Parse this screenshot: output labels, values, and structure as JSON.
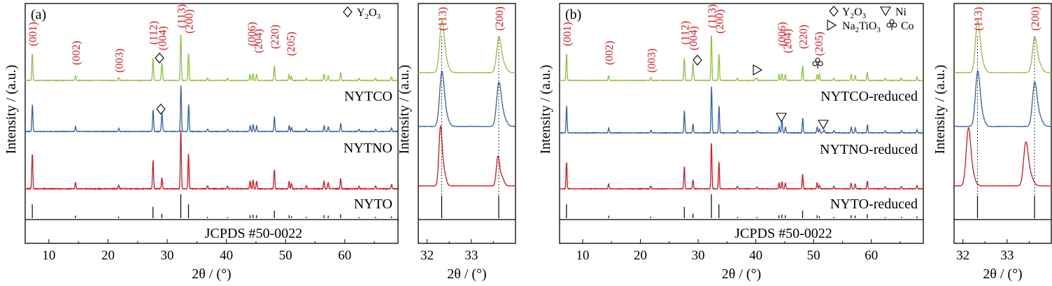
{
  "colors": {
    "NYTCO": "#8dc43f",
    "NYTNO": "#2d62ad",
    "NYTO": "#e0161f",
    "ref": "#000000",
    "hkl": "#e0161f"
  },
  "chart_data": [
    {
      "panel": "a",
      "type": "line",
      "panel_label": "(a)",
      "xlabel": "2θ / (°)",
      "ylabel": "Intensity / (a.u.)",
      "xlim": [
        6,
        69
      ],
      "xticks": [
        10,
        20,
        30,
        40,
        50,
        60
      ],
      "series": [
        {
          "name": "NYTCO"
        },
        {
          "name": "NYTNO"
        },
        {
          "name": "NYTO"
        }
      ],
      "reference_label": "JCPDS #50-0022",
      "peak_labels": [
        {
          "hkl": "(001)",
          "x": 7.2
        },
        {
          "hkl": "(002)",
          "x": 14.5
        },
        {
          "hkl": "(003)",
          "x": 21.8
        },
        {
          "hkl": "(112)",
          "x": 27.6
        },
        {
          "hkl": "(004)",
          "x": 29.1
        },
        {
          "hkl": "(113)",
          "x": 32.3
        },
        {
          "hkl": "(200)",
          "x": 33.6
        },
        {
          "hkl": "(006)",
          "x": 44.2
        },
        {
          "hkl": "(204)",
          "x": 45.3
        },
        {
          "hkl": "(220)",
          "x": 48.1
        },
        {
          "hkl": "(205)",
          "x": 50.8
        }
      ],
      "legend": [
        {
          "symbol": "diamond",
          "label": "Y",
          "sub": "2",
          "mid": "O",
          "sub2": "3"
        }
      ],
      "markers": [
        {
          "symbol": "diamond",
          "x": 29.1,
          "series": "NYTCO"
        },
        {
          "symbol": "diamond",
          "x": 29.1,
          "series": "NYTNO"
        }
      ]
    },
    {
      "panel": "a-inset",
      "type": "line",
      "xlabel": "2θ / (°)",
      "ylabel": "Intensity / (a.u.)",
      "xlim": [
        31.8,
        34.0
      ],
      "xticks": [
        32,
        33
      ],
      "peak_labels": [
        {
          "hkl": "(113)",
          "x": 32.33
        },
        {
          "hkl": "(200)",
          "x": 33.62
        }
      ],
      "guides": [
        32.33,
        33.62
      ]
    },
    {
      "panel": "b",
      "type": "line",
      "panel_label": "(b)",
      "xlabel": "2θ / (°)",
      "ylabel": "Intensity / (a.u.)",
      "xlim": [
        6,
        69
      ],
      "xticks": [
        10,
        20,
        30,
        40,
        50,
        60
      ],
      "series": [
        {
          "name": "NYTCO-reduced"
        },
        {
          "name": "NYTNO-reduced"
        },
        {
          "name": "NYTO-reduced"
        }
      ],
      "reference_label": "JCPDS #50-0022",
      "peak_labels": [
        {
          "hkl": "(001)",
          "x": 7.2
        },
        {
          "hkl": "(002)",
          "x": 14.5
        },
        {
          "hkl": "(003)",
          "x": 21.8
        },
        {
          "hkl": "(112)",
          "x": 27.6
        },
        {
          "hkl": "(004)",
          "x": 29.1
        },
        {
          "hkl": "(113)",
          "x": 32.3
        },
        {
          "hkl": "(200)",
          "x": 33.6
        },
        {
          "hkl": "(006)",
          "x": 44.4
        },
        {
          "hkl": "(204)",
          "x": 45.4
        },
        {
          "hkl": "(220)",
          "x": 48.1
        },
        {
          "hkl": "(205)",
          "x": 50.8
        }
      ],
      "legend": [
        {
          "symbol": "diamond",
          "label": "Y",
          "sub": "2",
          "mid": "O",
          "sub2": "3"
        },
        {
          "symbol": "triangle-down",
          "label": "Ni"
        },
        {
          "symbol": "triangle-right",
          "label": "Na",
          "sub": "2",
          "mid": "TiO",
          "sub2": "3"
        },
        {
          "symbol": "club",
          "label": "Co"
        }
      ],
      "markers": [
        {
          "symbol": "diamond",
          "x": 29.1,
          "series": "NYTCO-reduced"
        },
        {
          "symbol": "triangle-right",
          "x": 40.0,
          "series": "NYTCO-reduced"
        },
        {
          "symbol": "club",
          "x": 51.0,
          "series": "NYTCO-reduced"
        },
        {
          "symbol": "triangle-down",
          "x": 44.5,
          "series": "NYTNO-reduced"
        },
        {
          "symbol": "triangle-down",
          "x": 51.8,
          "series": "NYTNO-reduced"
        }
      ]
    },
    {
      "panel": "b-inset",
      "type": "line",
      "xlabel": "2θ / (°)",
      "ylabel": "Intensity / (a.u.)",
      "xlim": [
        31.8,
        34.0
      ],
      "xticks": [
        32,
        33
      ],
      "peak_labels": [
        {
          "hkl": "(113)",
          "x": 32.33
        },
        {
          "hkl": "(200)",
          "x": 33.62
        }
      ],
      "guides": [
        32.33,
        33.62
      ]
    }
  ]
}
